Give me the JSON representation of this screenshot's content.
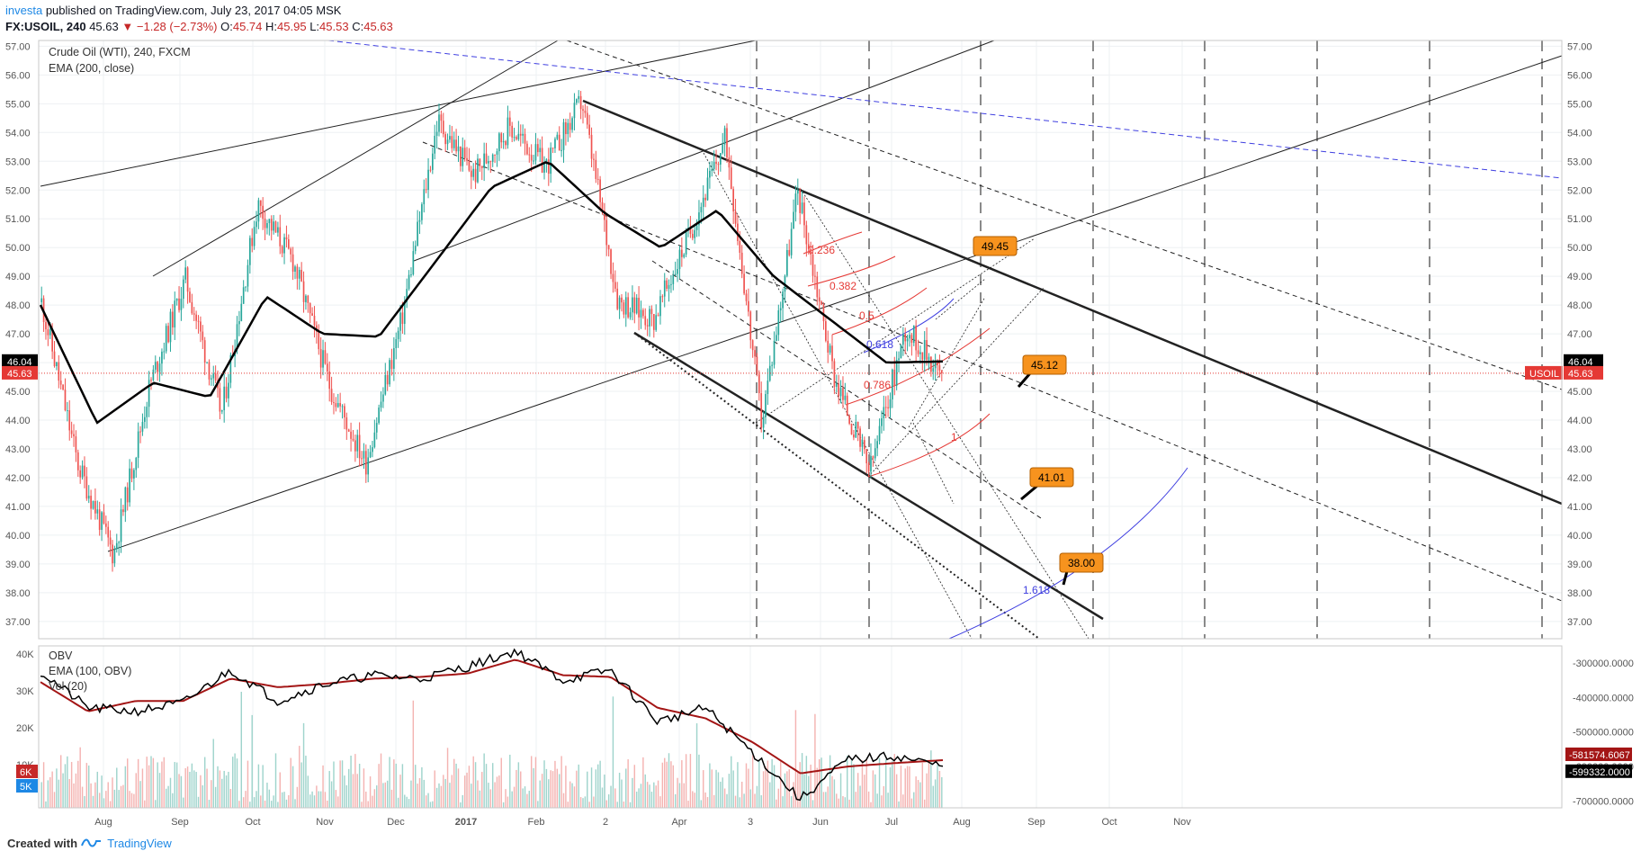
{
  "header": {
    "author": "investa",
    "published": "published on TradingView.com, July 23, 2017 04:05 MSK",
    "symbol_line": "FX:USOIL, 240",
    "last": "45.63",
    "change": "−1.28 (−2.73%)",
    "ohlc": {
      "o_label": "O:",
      "o": "45.74",
      "h_label": "H:",
      "h": "45.95",
      "l_label": "L:",
      "l": "45.53",
      "c_label": "C:",
      "c": "45.63"
    }
  },
  "main_legend": [
    "Crude Oil (WTI), 240, FXCM",
    "EMA (200, close)"
  ],
  "sub_legend": [
    "OBV",
    "EMA (100, OBV)",
    "Vol (20)"
  ],
  "footer": {
    "created_with": "Created with",
    "brand": "TradingView"
  },
  "colors": {
    "grid": "#eef0f3",
    "candle_up": "#26a69a",
    "candle_down": "#ef5350",
    "ema": "#000000",
    "obv_ema": "#a31515",
    "fib_red": "#e53935",
    "fib_blue": "#3f3fe0",
    "callout": "#f7931e",
    "price_line": "#e53935"
  },
  "chart_data": [
    {
      "type": "line",
      "title": "Crude Oil (WTI), 240, FXCM",
      "ylim": [
        36.4,
        57.2
      ],
      "y_ticks": [
        "57.00",
        "56.00",
        "55.00",
        "54.00",
        "53.00",
        "52.00",
        "51.00",
        "50.00",
        "49.00",
        "48.00",
        "47.00",
        "46.00",
        "45.00",
        "44.00",
        "43.00",
        "42.00",
        "41.00",
        "40.00",
        "39.00",
        "38.00",
        "37.00"
      ],
      "x_tick_labels": [
        "Aug",
        "Sep",
        "Oct",
        "Nov",
        "Dec",
        "2017",
        "Feb",
        "2",
        "Apr",
        "3",
        "Jun",
        "Jul",
        "Aug",
        "Sep",
        "Oct",
        "Nov"
      ],
      "series": [
        {
          "name": "Crude Oil (WTI), 240, FXCM",
          "x": [
            "Jul 2016",
            "Aug 2016",
            "Aug 2016",
            "Sep 2016",
            "Sep 2016",
            "Oct 2016",
            "Oct 2016",
            "Oct 2016",
            "Nov 2016",
            "Nov 2016",
            "Dec 2016",
            "Dec 2016",
            "Jan 2017",
            "Jan 2017",
            "Feb 2017",
            "Feb 2017",
            "Mar 2017",
            "Mar 2017",
            "Apr 2017",
            "Apr 2017",
            "May 2017",
            "May 2017",
            "Jun 2017",
            "Jun 2017",
            "Jul 2017",
            "Jul 2017"
          ],
          "values": [
            48.1,
            42.5,
            39.3,
            45.2,
            48.9,
            44.2,
            51.5,
            49.5,
            45.2,
            42.5,
            47.5,
            54.4,
            52.5,
            54.2,
            52.8,
            55.1,
            48.2,
            47.5,
            50.5,
            53.8,
            43.9,
            52.0,
            45.6,
            42.2,
            47.2,
            45.63
          ]
        },
        {
          "name": "EMA (200, close)",
          "x": [
            "Jul 2016",
            "Aug 2016",
            "Sep 2016",
            "Sep 2016",
            "Oct 2016",
            "Nov 2016",
            "Nov 2016",
            "Dec 2016",
            "Jan 2017",
            "Feb 2017",
            "Mar 2017",
            "Mar 2017",
            "Apr 2017",
            "May 2017",
            "Jun 2017",
            "Jun 2017",
            "Jul 2017"
          ],
          "values": [
            48.0,
            43.9,
            45.3,
            44.8,
            48.3,
            47.0,
            46.9,
            49.5,
            52.1,
            53.0,
            51.2,
            50.0,
            51.3,
            49.0,
            47.5,
            46.0,
            46.04
          ]
        }
      ],
      "annotations": [
        {
          "text": "49.45",
          "value": 49.45
        },
        {
          "text": "45.12",
          "value": 45.12
        },
        {
          "text": "41.01",
          "value": 41.01
        },
        {
          "text": "38.00",
          "value": 38.0
        },
        {
          "text": "0.236"
        },
        {
          "text": "0.382"
        },
        {
          "text": "0.5"
        },
        {
          "text": "0.618"
        },
        {
          "text": "0.786"
        },
        {
          "text": "1"
        },
        {
          "text": "1.618"
        }
      ],
      "price_labels": [
        {
          "text": "46.04",
          "value": 46.04,
          "color": "#000000"
        },
        {
          "text": "45.63",
          "value": 45.63,
          "color": "#e53935"
        },
        {
          "text": "USOIL",
          "value": 45.63,
          "color": "#e53935"
        }
      ]
    },
    {
      "type": "line",
      "title": "OBV",
      "ylim": [
        -720000,
        -250000
      ],
      "left_ticks": [
        "40K",
        "30K",
        "20K",
        "10K"
      ],
      "right_ticks": [
        "-300000.0000",
        "-400000.0000",
        "-500000.0000",
        "-600000.0000",
        "-700000.0000"
      ],
      "series": [
        {
          "name": "OBV",
          "values": [
            -325000,
            -430000,
            -440000,
            -415000,
            -320000,
            -410000,
            -360000,
            -335000,
            -345000,
            -310000,
            -265000,
            -350000,
            -320000,
            -470000,
            -430000,
            -560000,
            -695000,
            -580000,
            -570000,
            -599332
          ]
        },
        {
          "name": "EMA (100, OBV)",
          "values": [
            -355000,
            -440000,
            -410000,
            -410000,
            -345000,
            -370000,
            -360000,
            -345000,
            -340000,
            -330000,
            -290000,
            -335000,
            -340000,
            -430000,
            -460000,
            -530000,
            -620000,
            -600000,
            -590000,
            -581574.6067
          ]
        }
      ],
      "value_labels": [
        {
          "text": "-581574.6067",
          "color": "#a31515"
        },
        {
          "text": "-599332.0000",
          "color": "#000000"
        },
        {
          "text": "6K",
          "color": "#c62828"
        },
        {
          "text": "5K",
          "color": "#1e88e5"
        }
      ]
    }
  ]
}
